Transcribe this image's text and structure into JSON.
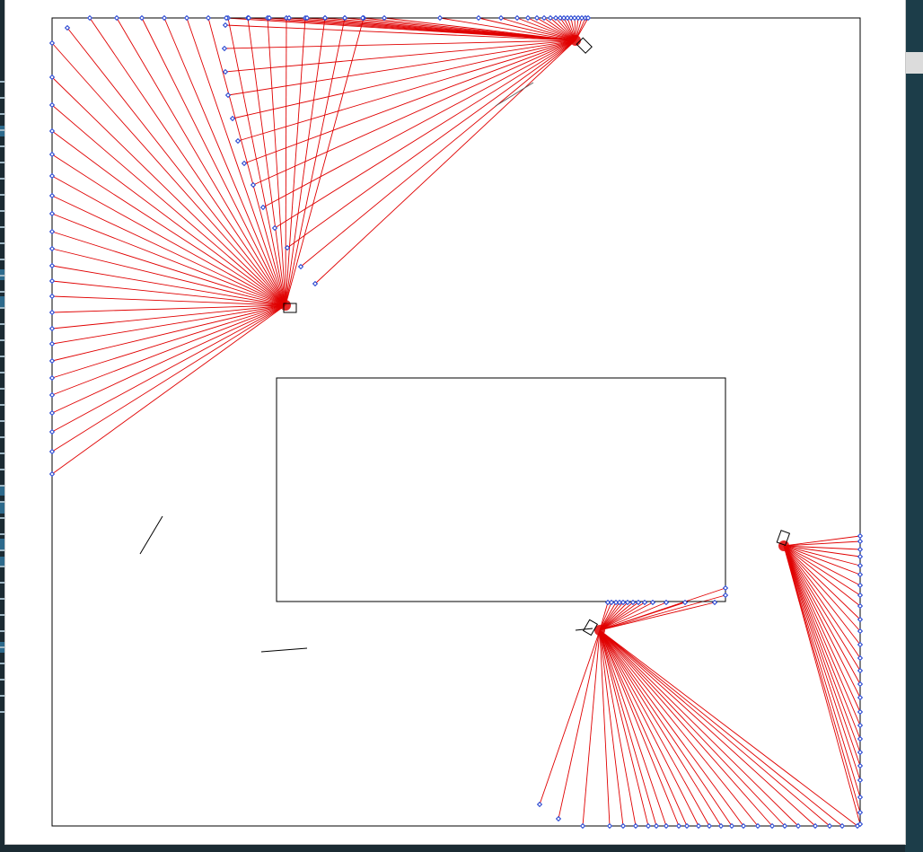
{
  "window": {
    "background": "#ffffff"
  },
  "scene": {
    "colors": {
      "ray": "#e00000",
      "hit_point": "#1f3fd0",
      "wall": "#000000",
      "robot": "#000000"
    },
    "icons": {
      "robot": "robot-sensor-icon",
      "hit": "lidar-hit-point-icon"
    }
  }
}
